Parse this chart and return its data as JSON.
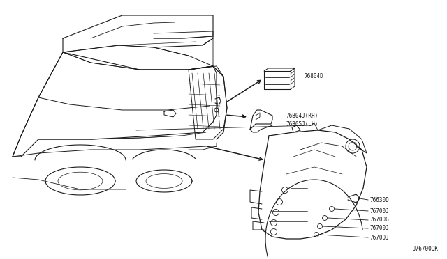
{
  "diagram_code": "J76700QK",
  "background_color": "#ffffff",
  "line_color": "#1a1a1a",
  "text_color": "#1a1a1a",
  "figure_width": 6.4,
  "figure_height": 3.72,
  "dpi": 100,
  "label_76804D": "76804D",
  "label_76B04J": "76B04J(RH)",
  "label_76B05J": "76B05J(LH)",
  "label_76630D": "76630D",
  "label_76700J_1": "76700J",
  "label_76700G": "76700G",
  "label_76700J_2": "76700J",
  "label_76700J_3": "76700J",
  "font_size_labels": 5.5,
  "font_size_code": 5.5
}
